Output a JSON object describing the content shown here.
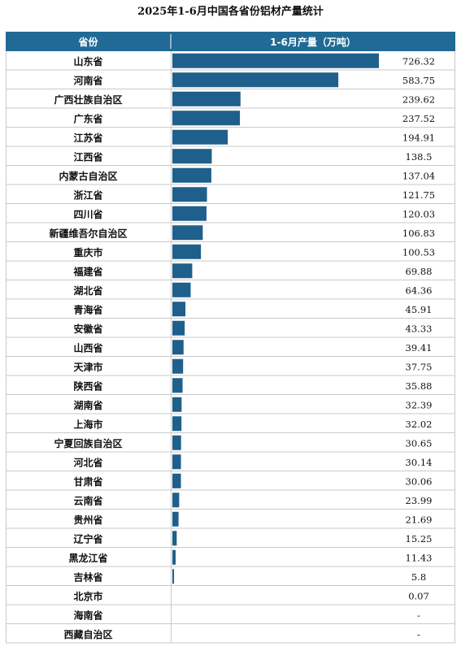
{
  "title": "2025年1-6月中国各省份铝材产量统计",
  "header": {
    "province": "省份",
    "value": "1-6月产量（万吨）"
  },
  "colors": {
    "header_bg": "#216a95",
    "bar": "#1f5f8b",
    "grid": "#c9c9c9",
    "text": "#111111"
  },
  "chart_data": {
    "type": "bar",
    "orientation": "horizontal",
    "title": "2025年1-6月中国各省份铝材产量统计",
    "category_header": "省份",
    "value_header": "1-6月产量（万吨）",
    "categories": [
      "山东省",
      "河南省",
      "广西壮族自治区",
      "广东省",
      "江苏省",
      "江西省",
      "内蒙古自治区",
      "浙江省",
      "四川省",
      "新疆维吾尔自治区",
      "重庆市",
      "福建省",
      "湖北省",
      "青海省",
      "安徽省",
      "山西省",
      "天津市",
      "陕西省",
      "湖南省",
      "上海市",
      "宁夏回族自治区",
      "河北省",
      "甘肃省",
      "云南省",
      "贵州省",
      "辽宁省",
      "黑龙江省",
      "吉林省",
      "北京市",
      "海南省",
      "西藏自治区"
    ],
    "values": [
      726.32,
      583.75,
      239.62,
      237.52,
      194.91,
      138.5,
      137.04,
      121.75,
      120.03,
      106.83,
      100.53,
      69.88,
      64.36,
      45.91,
      43.33,
      39.41,
      37.75,
      35.88,
      32.39,
      32.02,
      30.65,
      30.14,
      30.06,
      23.99,
      21.69,
      15.25,
      11.43,
      5.8,
      0.07,
      null,
      null
    ],
    "value_labels": [
      "726.32",
      "583.75",
      "239.62",
      "237.52",
      "194.91",
      "138.5",
      "137.04",
      "121.75",
      "120.03",
      "106.83",
      "100.53",
      "69.88",
      "64.36",
      "45.91",
      "43.33",
      "39.41",
      "37.75",
      "35.88",
      "32.39",
      "32.02",
      "30.65",
      "30.14",
      "30.06",
      "23.99",
      "21.69",
      "15.25",
      "11.43",
      "5.8",
      "0.07",
      "-",
      "-"
    ],
    "xlim": [
      0,
      726.32
    ]
  }
}
